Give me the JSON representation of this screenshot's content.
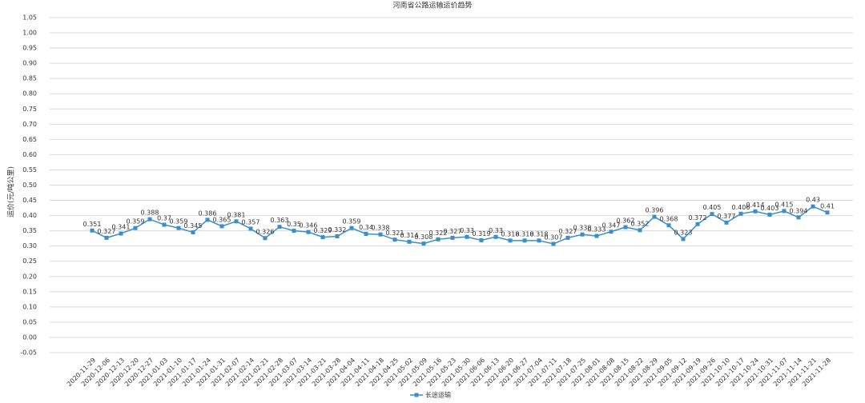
{
  "chart_data": {
    "type": "line",
    "title": "河南省公路运输运价趋势",
    "y_label": "运价(元/吨公里)",
    "categories": [
      "2020-11-29",
      "2020-12-06",
      "2020-12-13",
      "2020-12-20",
      "2020-12-27",
      "2021-01-03",
      "2021-01-10",
      "2021-01-17",
      "2021-01-24",
      "2021-01-31",
      "2021-02-07",
      "2021-02-14",
      "2021-02-21",
      "2021-02-28",
      "2021-03-07",
      "2021-03-14",
      "2021-03-21",
      "2021-03-28",
      "2021-04-04",
      "2021-04-11",
      "2021-04-18",
      "2021-04-25",
      "2021-05-02",
      "2021-05-09",
      "2021-05-16",
      "2021-05-23",
      "2021-05-30",
      "2021-06-06",
      "2021-06-13",
      "2021-06-20",
      "2021-06-27",
      "2021-07-04",
      "2021-07-11",
      "2021-07-18",
      "2021-07-25",
      "2021-08-01",
      "2021-08-08",
      "2021-08-15",
      "2021-08-22",
      "2021-08-29",
      "2021-09-05",
      "2021-09-12",
      "2021-09-19",
      "2021-09-26",
      "2021-10-10",
      "2021-10-17",
      "2021-10-24",
      "2021-10-31",
      "2021-11-07",
      "2021-11-14",
      "2021-11-21",
      "2021-11-28"
    ],
    "series": [
      {
        "name": "长途运输",
        "color": "#3a8fc8",
        "values": [
          0.351,
          0.327,
          0.341,
          0.359,
          0.388,
          0.37,
          0.359,
          0.345,
          0.386,
          0.365,
          0.381,
          0.357,
          0.326,
          0.363,
          0.35,
          0.346,
          0.329,
          0.332,
          0.359,
          0.34,
          0.338,
          0.321,
          0.314,
          0.308,
          0.322,
          0.327,
          0.33,
          0.319,
          0.33,
          0.318,
          0.318,
          0.318,
          0.307,
          0.327,
          0.338,
          0.333,
          0.347,
          0.362,
          0.352,
          0.396,
          0.368,
          0.323,
          0.372,
          0.405,
          0.377,
          0.406,
          0.414,
          0.403,
          0.415,
          0.394,
          0.43,
          0.41
        ]
      }
    ],
    "ylim": [
      -0.05,
      1.05
    ],
    "yticks": [
      -0.05,
      {
        "value": 0,
        "label": "0.00"
      },
      0.05,
      {
        "value": 0.1,
        "label": "0.10"
      },
      0.15,
      {
        "value": 0.2,
        "label": "0.20"
      },
      0.25,
      {
        "value": 0.3,
        "label": "0.30"
      },
      0.35,
      {
        "value": 0.4,
        "label": "0.40"
      },
      0.45,
      {
        "value": 0.5,
        "label": "0.50"
      },
      0.55,
      {
        "value": 0.6,
        "label": "0.60"
      },
      0.65,
      {
        "value": 0.7,
        "label": "0.70"
      },
      0.75,
      {
        "value": 0.8,
        "label": "0.80"
      },
      0.85,
      {
        "value": 0.9,
        "label": "0.90"
      },
      0.95,
      {
        "value": 1,
        "label": "1.00"
      },
      1.05
    ],
    "grid": true,
    "legend": "bottom"
  }
}
